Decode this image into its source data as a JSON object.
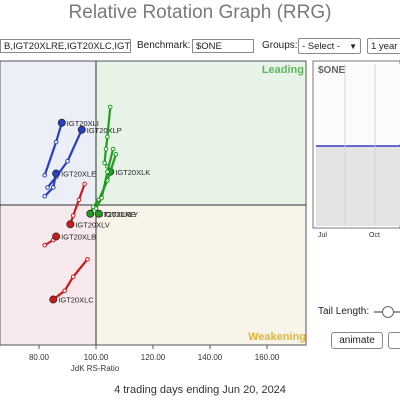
{
  "app": {
    "title": "Relative Rotation Graph (RRG)"
  },
  "toolbar": {
    "symbols_value": "B,IGT20XLRE,IGT20XLC,IGT2",
    "benchmark_label": "Benchmark:",
    "benchmark_value": "$ONE",
    "groups_label": "Groups:",
    "groups_value": "- Select -",
    "period_value": "1 year"
  },
  "quadrants": {
    "leading": "Leading",
    "weakening": "Weakening",
    "colors": {
      "improving": "#eceff8",
      "leading": "#e8f3e8",
      "lagging": "#f8e9ee",
      "weakening": "#f9f4ea"
    }
  },
  "chart_data": {
    "type": "scatter",
    "xlabel": "JdK RS-Ratio",
    "x_ticks": [
      "80.00",
      "100.00",
      "120.00",
      "140.00",
      "160.00"
    ],
    "x_center": 100,
    "series": [
      {
        "name": "IGT20XLI",
        "color": "#2b3fbf",
        "points": [
          [
            82,
            101.7
          ],
          [
            86,
            103.6
          ],
          [
            88,
            104.7
          ]
        ]
      },
      {
        "name": "IGT20XLP",
        "color": "#2b3fbf",
        "points": [
          [
            83,
            101.0
          ],
          [
            86,
            101.6
          ],
          [
            90,
            102.5
          ],
          [
            95,
            104.3
          ]
        ]
      },
      {
        "name": "IGT20XLE",
        "color": "#2b3fbf",
        "points": [
          [
            82,
            100.5
          ],
          [
            85,
            101.0
          ],
          [
            86,
            101.8
          ]
        ]
      },
      {
        "name": "IGT20XLB",
        "color": "#cc1a1a",
        "points": [
          [
            82,
            97.7
          ],
          [
            85,
            98.0
          ],
          [
            86,
            98.2
          ]
        ]
      },
      {
        "name": "IGT20XLC",
        "color": "#cc1a1a",
        "points": [
          [
            97,
            96.9
          ],
          [
            92,
            95.9
          ],
          [
            89,
            95.1
          ],
          [
            85,
            94.6
          ]
        ]
      },
      {
        "name": "IGT20XLV",
        "color": "#cc1a1a",
        "points": [
          [
            96,
            101.2
          ],
          [
            94,
            100.3
          ],
          [
            92,
            99.4
          ],
          [
            91,
            98.9
          ]
        ]
      },
      {
        "name": "IGT20XLK",
        "color": "#1f9d1f",
        "points": [
          [
            105,
            105.6
          ],
          [
            104,
            103.9
          ],
          [
            103.5,
            103.2
          ],
          [
            103,
            102.4
          ],
          [
            104,
            102.2
          ],
          [
            105,
            101.9
          ]
        ]
      },
      {
        "name": "IGT20XLRE",
        "color": "#1f9d1f",
        "points": [
          [
            107,
            102.9
          ],
          [
            104,
            101.4
          ],
          [
            101,
            100.3
          ],
          [
            99,
            99.9
          ],
          [
            98,
            99.5
          ]
        ]
      },
      {
        "name": "IGT20XLY",
        "color": "#1f9d1f",
        "points": [
          [
            106,
            103.2
          ],
          [
            104,
            101.9
          ],
          [
            102,
            100.4
          ],
          [
            100,
            99.8
          ],
          [
            101,
            99.5
          ]
        ]
      }
    ]
  },
  "benchmark_panel": {
    "label": "$ONE",
    "x_ticks": [
      "Jul",
      "Oct"
    ]
  },
  "controls": {
    "tail_length_label": "Tail Length:",
    "tail_length_value": 4,
    "animate_label": "animate"
  },
  "footer": {
    "text": "4 trading days ending Jun 20, 2024"
  }
}
